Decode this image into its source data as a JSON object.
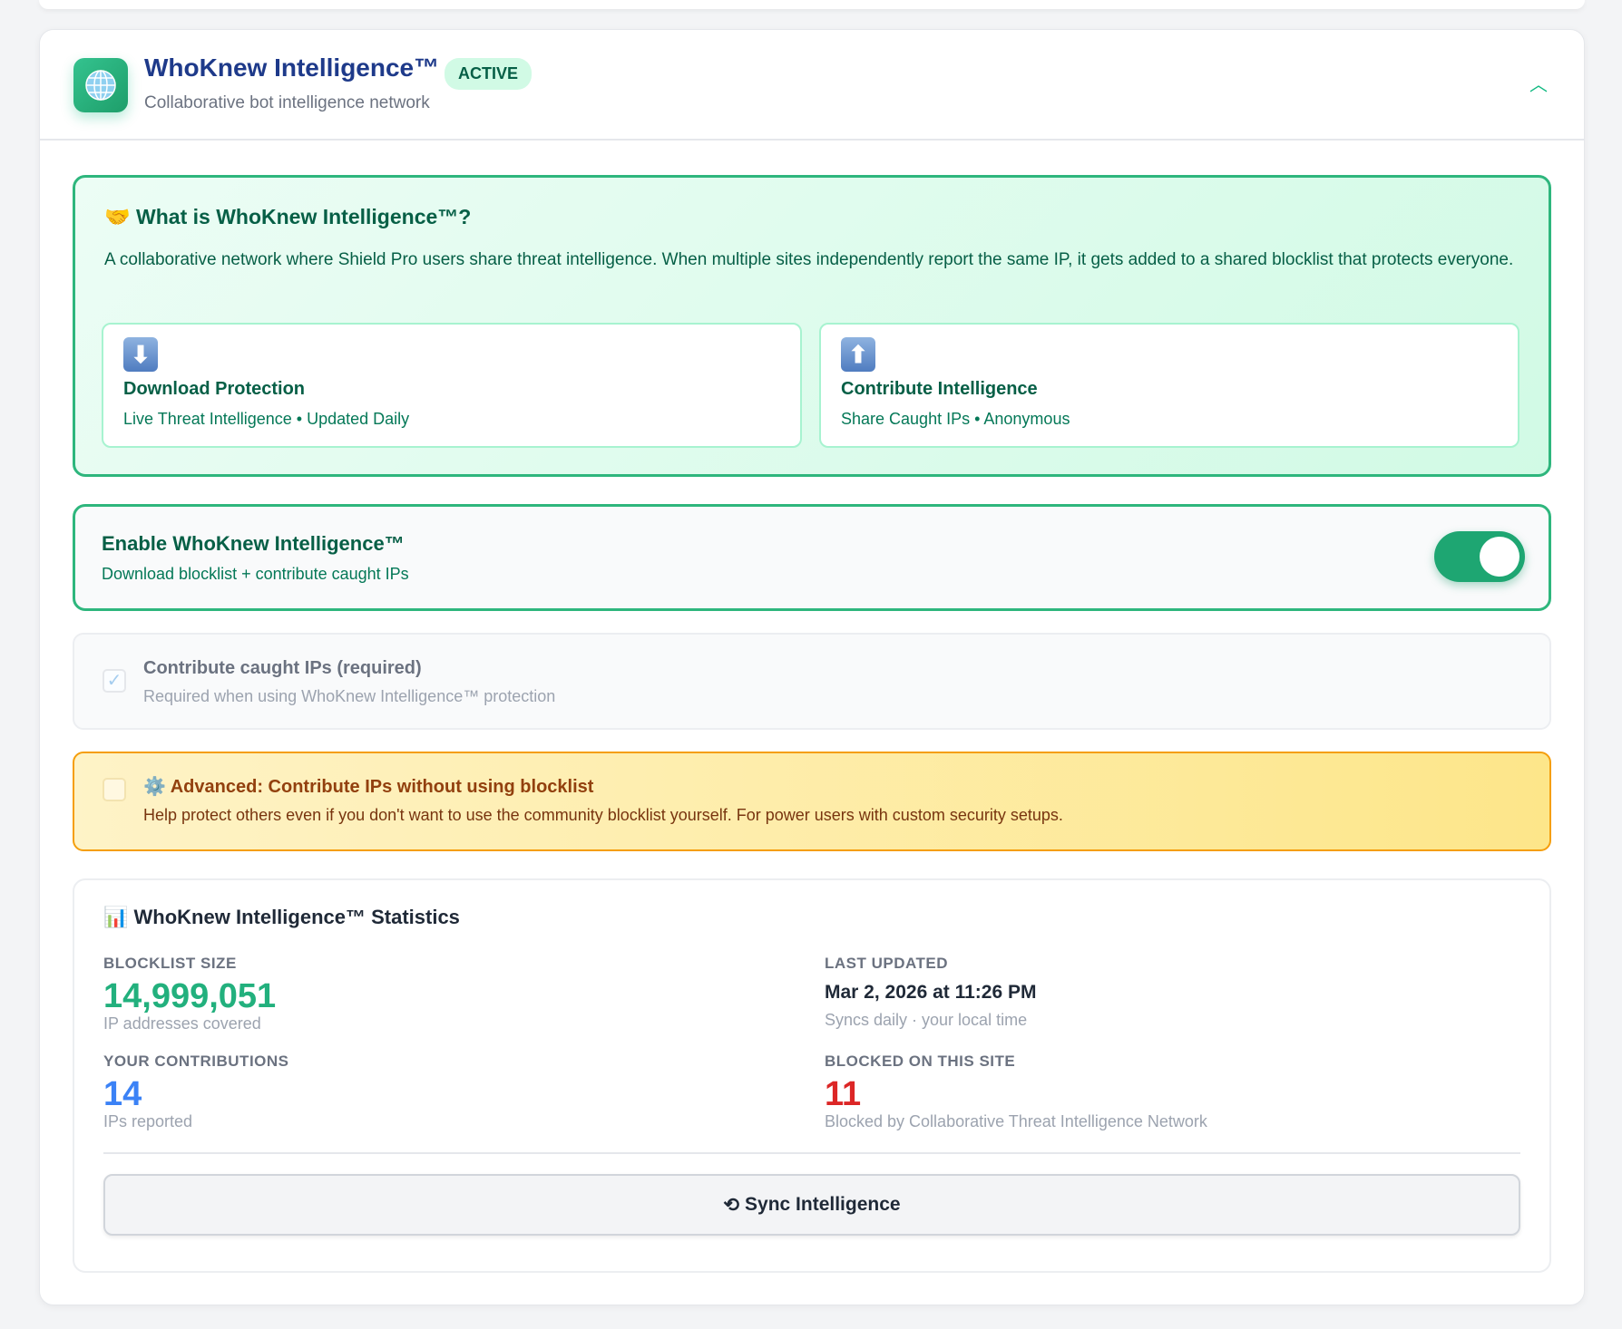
{
  "header": {
    "title": "WhoKnew Intelligence™",
    "badge": "ACTIVE",
    "subtitle": "Collaborative bot intelligence network",
    "collapse_icon": "chevron-up-icon"
  },
  "info": {
    "icon": "🤝",
    "title": "What is WhoKnew Intelligence™?",
    "description": "A collaborative network where Shield Pro users share threat intelligence. When multiple sites independently report the same IP, it gets added to a shared blocklist that protects everyone.",
    "features": [
      {
        "icon": "⬇",
        "title": "Download Protection",
        "desc": "Live Threat Intelligence • Updated Daily"
      },
      {
        "icon": "⬆",
        "title": "Contribute Intelligence",
        "desc": "Share Caught IPs • Anonymous"
      }
    ]
  },
  "enable": {
    "title": "Enable WhoKnew Intelligence™",
    "desc": "Download blocklist + contribute caught IPs",
    "enabled": true
  },
  "contribute": {
    "title": "Contribute caught IPs (required)",
    "desc": "Required when using WhoKnew Intelligence™ protection",
    "checked": true,
    "check": "✓"
  },
  "advanced": {
    "icon": "⚙️",
    "title": "Advanced: Contribute IPs without using blocklist",
    "desc": "Help protect others even if you don't want to use the community blocklist yourself. For power users with custom security setups.",
    "checked": false
  },
  "stats": {
    "icon": "📊",
    "title": "WhoKnew Intelligence™ Statistics",
    "blocklist": {
      "label": "BLOCKLIST SIZE",
      "value": "14,999,051",
      "sub": "IP addresses covered",
      "color": "#22b07d"
    },
    "updated": {
      "label": "LAST UPDATED",
      "value": "Mar 2, 2026 at 11:26 PM",
      "sub": "Syncs daily · your local time"
    },
    "contrib": {
      "label": "YOUR CONTRIBUTIONS",
      "value": "14",
      "sub": "IPs reported",
      "color": "#3b82f6"
    },
    "blocked": {
      "label": "BLOCKED ON THIS SITE",
      "value": "11",
      "sub": "Blocked by Collaborative Threat Intelligence Network",
      "color": "#dc2626"
    },
    "sync_icon": "⟲",
    "sync_label": "Sync Intelligence"
  }
}
